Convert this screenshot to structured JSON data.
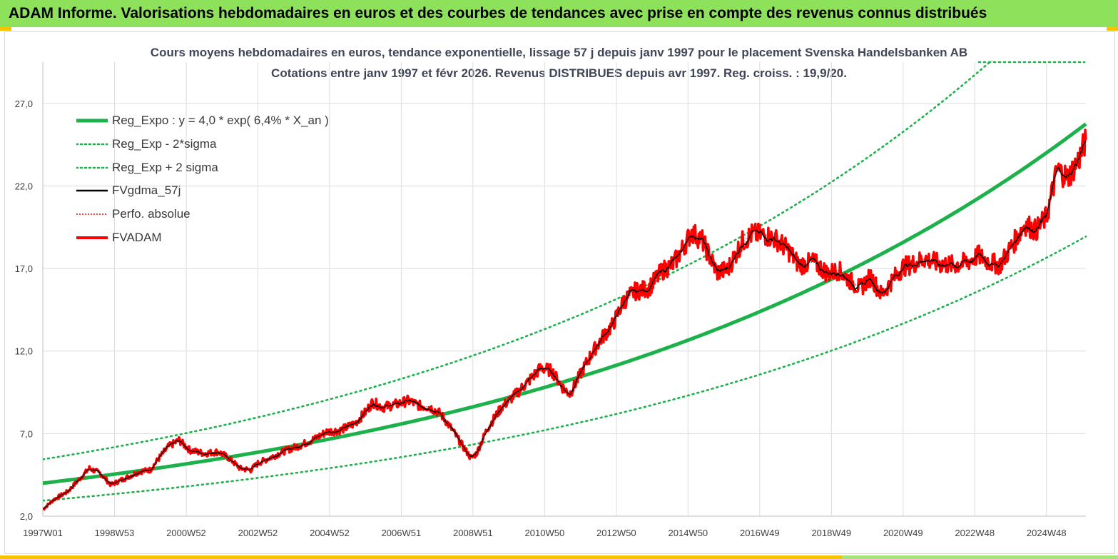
{
  "banner": {
    "title": "ADAM Informe. Valorisations hebdomadaires en euros et des courbes de tendances avec prise en compte des revenus connus distribués"
  },
  "chart_data": {
    "type": "line",
    "title": "Cours moyens hebdomadaires en euros, tendance exponentielle, lissage 57 j depuis janv 1997  pour le placement Svenska Handelsbanken AB",
    "subtitle": "Cotations entre janv 1997  et  févr  2026. Revenus DISTRIBUES  depuis avr 1997. Reg. croiss. : 19,9/20.",
    "xlabel": "",
    "ylabel": "",
    "x_start": 1997.0,
    "x_end": 2026.1,
    "ylim": [
      2.0,
      29.5
    ],
    "y_ticks": [
      2.0,
      7.0,
      12.0,
      17.0,
      22.0,
      27.0
    ],
    "y_tick_labels": [
      "2,0",
      "7,0",
      "12,0",
      "17,0",
      "22,0",
      "27,0"
    ],
    "x_ticks": [
      1997.0,
      1999.0,
      2001.0,
      2003.0,
      2005.0,
      2007.0,
      2009.0,
      2011.0,
      2013.0,
      2015.0,
      2017.0,
      2019.0,
      2021.0,
      2023.0,
      2025.0
    ],
    "x_tick_labels": [
      "1997W01",
      "1998W53",
      "2000W52",
      "2002W52",
      "2004W52",
      "2006W51",
      "2008W51",
      "2010W50",
      "2012W50",
      "2014W50",
      "2016W49",
      "2018W49",
      "2020W49",
      "2022W48",
      "2024W48"
    ],
    "grid": true,
    "legend_position": "top-left",
    "regression": {
      "a": 4.0,
      "growth": 0.064,
      "band_factor": 1.36
    },
    "series": [
      {
        "name": "Reg_Expo : y = 4,0 * exp( 6,4% *  X_an )",
        "color": "#1db14b",
        "style": "thick"
      },
      {
        "name": "Reg_Exp - 2*sigma",
        "color": "#1db14b",
        "style": "dotted"
      },
      {
        "name": "Reg_Exp + 2 sigma",
        "color": "#1db14b",
        "style": "dotted"
      },
      {
        "name": "FVgdma_57j",
        "color": "#000000",
        "style": "solid"
      },
      {
        "name": "Perfo. absolue",
        "color": "#ff0000",
        "style": "dotted-thin"
      },
      {
        "name": "FVADAM",
        "color": "#ff0000",
        "style": "thick",
        "x": [
          1997.0,
          1997.3,
          1997.7,
          1998.0,
          1998.3,
          1998.6,
          1998.9,
          1999.1,
          1999.4,
          1999.7,
          2000.0,
          2000.2,
          2000.5,
          2000.8,
          2001.1,
          2001.5,
          2001.9,
          2002.2,
          2002.5,
          2002.8,
          2003.0,
          2003.4,
          2003.8,
          2004.2,
          2004.6,
          2004.9,
          2005.3,
          2005.7,
          2006.0,
          2006.2,
          2006.5,
          2006.9,
          2007.2,
          2007.5,
          2007.8,
          2008.1,
          2008.4,
          2008.7,
          2008.95,
          2009.1,
          2009.4,
          2009.8,
          2010.2,
          2010.6,
          2010.9,
          2011.2,
          2011.5,
          2011.7,
          2012.0,
          2012.3,
          2012.6,
          2012.9,
          2013.2,
          2013.5,
          2013.9,
          2014.3,
          2014.6,
          2014.9,
          2015.1,
          2015.4,
          2015.8,
          2016.1,
          2016.5,
          2016.8,
          2017.2,
          2017.5,
          2017.8,
          2018.1,
          2018.5,
          2018.9,
          2019.2,
          2019.5,
          2019.8,
          2020.1,
          2020.4,
          2020.7,
          2021.0,
          2021.3,
          2021.6,
          2022.0,
          2022.4,
          2022.8,
          2023.1,
          2023.4,
          2023.7,
          2024.1,
          2024.4,
          2024.7,
          2025.0,
          2025.3,
          2025.6,
          2025.9,
          2026.1
        ],
        "values": [
          2.4,
          3.0,
          3.5,
          4.2,
          4.9,
          4.6,
          3.9,
          4.1,
          4.4,
          4.7,
          4.8,
          5.4,
          6.2,
          6.6,
          6.0,
          5.8,
          5.9,
          5.5,
          4.9,
          4.8,
          5.2,
          5.6,
          6.0,
          6.3,
          6.7,
          7.1,
          7.2,
          7.6,
          8.3,
          8.9,
          8.6,
          8.8,
          9.0,
          8.7,
          8.6,
          8.2,
          7.3,
          6.3,
          5.5,
          5.8,
          7.3,
          8.6,
          9.4,
          10.3,
          11.0,
          10.8,
          9.8,
          9.4,
          10.6,
          11.8,
          12.8,
          13.6,
          15.0,
          15.6,
          15.8,
          16.9,
          17.3,
          18.4,
          19.2,
          18.7,
          16.8,
          16.9,
          18.6,
          19.1,
          19.0,
          18.7,
          18.1,
          17.2,
          17.4,
          16.7,
          16.9,
          16.3,
          15.8,
          16.5,
          15.4,
          16.3,
          17.1,
          17.3,
          17.6,
          17.3,
          17.2,
          17.4,
          17.8,
          17.4,
          17.2,
          18.6,
          19.7,
          19.3,
          20.1,
          23.0,
          22.5,
          23.6,
          24.8
        ]
      }
    ]
  }
}
